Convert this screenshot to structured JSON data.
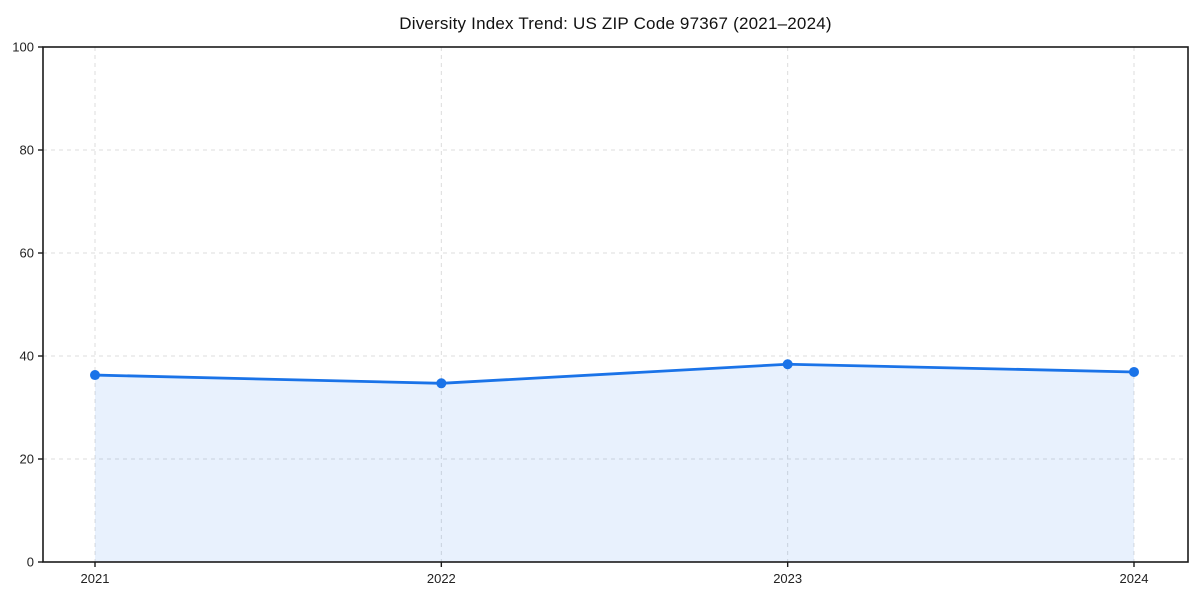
{
  "chart_data": {
    "type": "line",
    "title": "Diversity Index Trend: US ZIP Code 97367 (2021–2024)",
    "categories": [
      "2021",
      "2022",
      "2023",
      "2024"
    ],
    "series": [
      {
        "name": "Diversity Index",
        "values": [
          36.3,
          34.7,
          38.4,
          36.9
        ]
      }
    ],
    "xlabel": "",
    "ylabel": "",
    "ylim": [
      0,
      100
    ],
    "yticks": [
      0,
      20,
      40,
      60,
      80,
      100
    ],
    "grid": "dashed, both axes, behind data",
    "legend": "none",
    "area_fill": true,
    "marker": "circle",
    "colors": {
      "line": "#1a73e8",
      "fill": "#1a73e8",
      "fill_opacity": 0.1,
      "grid": "#dcdcdc",
      "spine": "#1a1a1a",
      "tick_label": "#222222",
      "title": "#111111"
    }
  }
}
